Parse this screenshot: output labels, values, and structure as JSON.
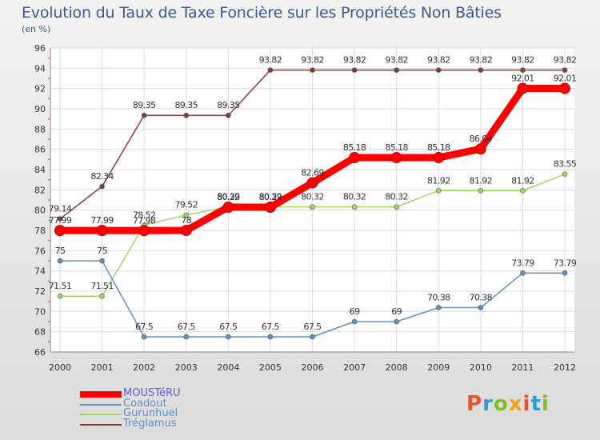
{
  "title": "Evolution du Taux de Taxe Foncière sur les Propriétés Non Bâties",
  "subtitle": "(en %)",
  "logo": {
    "text": "Proxiti",
    "colors": [
      "#e8502e",
      "#2f9ae0",
      "#7bbf2a",
      "#f2a21a",
      "#e8502e",
      "#2f9ae0",
      "#7bbf2a"
    ]
  },
  "chart_data": {
    "type": "line",
    "title": "Evolution du Taux de Taxe Foncière sur les Propriétés Non Bâties",
    "ylabel": "(en %)",
    "xlabel": "",
    "ylim": [
      66,
      96
    ],
    "yticks": [
      66,
      68,
      70,
      72,
      74,
      76,
      78,
      80,
      82,
      84,
      86,
      88,
      90,
      92,
      94,
      96
    ],
    "categories": [
      "2000",
      "2001",
      "2002",
      "2003",
      "2004",
      "2005",
      "2006",
      "2007",
      "2008",
      "2009",
      "2010",
      "2011",
      "2012"
    ],
    "grid": true,
    "legend_position": "bottom-left",
    "series": [
      {
        "name": "MOUSTéRU",
        "color": "#ff0000",
        "width": "thick",
        "values": [
          77.99,
          77.99,
          77.98,
          78,
          80.29,
          80.29,
          82.69,
          85.18,
          85.18,
          85.18,
          86.04,
          92.01,
          92.01
        ],
        "labels": [
          "77.99",
          "77.99",
          "77.98",
          "78",
          "80.29",
          "80.29",
          "82.69",
          "85.18",
          "85.18",
          "85.18",
          "86.04",
          "92.01",
          "92.01"
        ]
      },
      {
        "name": "Coadout",
        "color": "#5b93c7",
        "width": "thin",
        "values": [
          75,
          75,
          67.5,
          67.5,
          67.5,
          67.5,
          67.5,
          69,
          69,
          70.38,
          70.38,
          73.79,
          73.79
        ],
        "labels": [
          "75",
          "75",
          "67.5",
          "67.5",
          "67.5",
          "67.5",
          "67.5",
          "69",
          "69",
          "70.38",
          "70.38",
          "73.79",
          "73.79"
        ]
      },
      {
        "name": "Gurunhuel",
        "color": "#9fd65f",
        "width": "thin",
        "values": [
          71.51,
          71.51,
          78.52,
          79.52,
          80.32,
          80.32,
          80.32,
          80.32,
          80.32,
          81.92,
          81.92,
          81.92,
          83.55
        ],
        "labels": [
          "71.51",
          "71.51",
          "78.52",
          "79.52",
          "80.32",
          "80.32",
          "80.32",
          "80.32",
          "80.32",
          "81.92",
          "81.92",
          "81.92",
          "83.55"
        ]
      },
      {
        "name": "Tréglamus",
        "color": "#8b3a3a",
        "width": "thin",
        "values": [
          79.14,
          82.34,
          89.35,
          89.35,
          89.35,
          93.82,
          93.82,
          93.82,
          93.82,
          93.82,
          93.82,
          93.82,
          93.82
        ],
        "labels": [
          "79.14",
          "82.34",
          "89.35",
          "89.35",
          "89.35",
          "93.82",
          "93.82",
          "93.82",
          "93.82",
          "93.82",
          "93.82",
          "93.82",
          "93.82"
        ]
      }
    ]
  }
}
